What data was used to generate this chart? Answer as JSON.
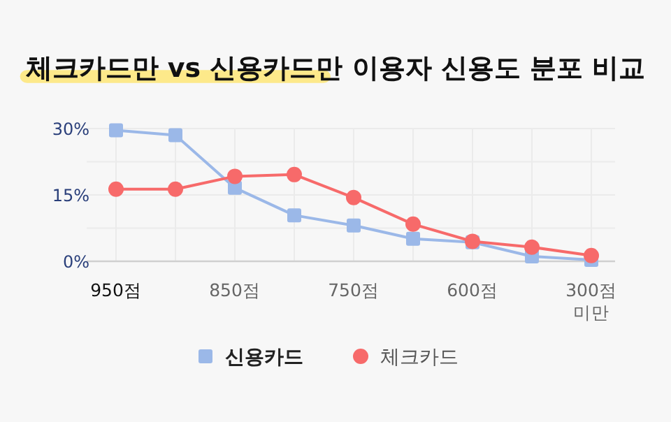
{
  "chart_data": {
    "type": "line",
    "title": "체크카드만 vs 신용카드만 이용자 신용도 분포 비교",
    "categories": [
      "950점",
      null,
      "850점",
      null,
      "750점",
      null,
      "600점",
      null,
      "300점 미만"
    ],
    "series": [
      {
        "name": "신용카드",
        "color": "#9bb8e8",
        "marker": "square",
        "values": [
          29.6,
          28.5,
          16.6,
          10.4,
          8.1,
          5.1,
          4.3,
          1.1,
          0.3
        ]
      },
      {
        "name": "체크카드",
        "color": "#f76a6a",
        "marker": "circle",
        "values": [
          16.3,
          16.3,
          19.2,
          19.6,
          14.4,
          8.4,
          4.5,
          3.2,
          1.3
        ]
      }
    ],
    "ylim": [
      0,
      30
    ],
    "yticks": [
      {
        "value": 0,
        "label": "0%"
      },
      {
        "value": 7.5,
        "label": null
      },
      {
        "value": 15,
        "label": "15%"
      },
      {
        "value": 22.5,
        "label": null
      },
      {
        "value": 30,
        "label": "30%"
      }
    ],
    "grid": true,
    "legend": "bottom",
    "line_style": "solid"
  }
}
